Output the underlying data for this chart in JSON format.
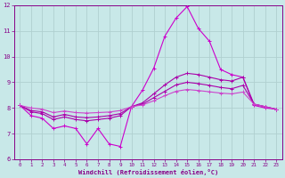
{
  "xlabel": "Windchill (Refroidissement éolien,°C)",
  "xlim": [
    -0.5,
    23.5
  ],
  "ylim": [
    6,
    12
  ],
  "yticks": [
    6,
    7,
    8,
    9,
    10,
    11,
    12
  ],
  "xticks": [
    0,
    1,
    2,
    3,
    4,
    5,
    6,
    7,
    8,
    9,
    10,
    11,
    12,
    13,
    14,
    15,
    16,
    17,
    18,
    19,
    20,
    21,
    22,
    23
  ],
  "bg_color": "#c8e8e8",
  "grid_color": "#b0d0d0",
  "series": [
    {
      "color": "#cc00cc",
      "y": [
        8.1,
        7.7,
        7.6,
        7.2,
        7.3,
        7.2,
        6.6,
        7.2,
        6.6,
        6.5,
        8.05,
        8.7,
        9.55,
        10.8,
        11.5,
        11.95,
        11.1,
        10.6,
        9.5,
        9.3,
        9.2,
        8.1,
        8.0,
        7.95
      ]
    },
    {
      "color": "#aa00aa",
      "y": [
        8.1,
        7.85,
        7.78,
        7.55,
        7.65,
        7.55,
        7.5,
        7.55,
        7.6,
        7.7,
        8.05,
        8.2,
        8.55,
        8.9,
        9.2,
        9.35,
        9.3,
        9.2,
        9.1,
        9.05,
        9.2,
        8.15,
        8.05,
        7.95
      ]
    },
    {
      "color": "#aa00aa",
      "y": [
        8.1,
        7.9,
        7.85,
        7.65,
        7.75,
        7.65,
        7.62,
        7.65,
        7.7,
        7.78,
        8.05,
        8.15,
        8.4,
        8.65,
        8.9,
        9.0,
        8.95,
        8.88,
        8.8,
        8.75,
        8.88,
        8.15,
        8.05,
        7.95
      ]
    },
    {
      "color": "#cc44cc",
      "y": [
        8.1,
        8.0,
        7.95,
        7.82,
        7.88,
        7.82,
        7.8,
        7.82,
        7.84,
        7.9,
        8.05,
        8.12,
        8.28,
        8.48,
        8.65,
        8.72,
        8.68,
        8.63,
        8.58,
        8.55,
        8.62,
        8.15,
        8.05,
        7.95
      ]
    }
  ]
}
